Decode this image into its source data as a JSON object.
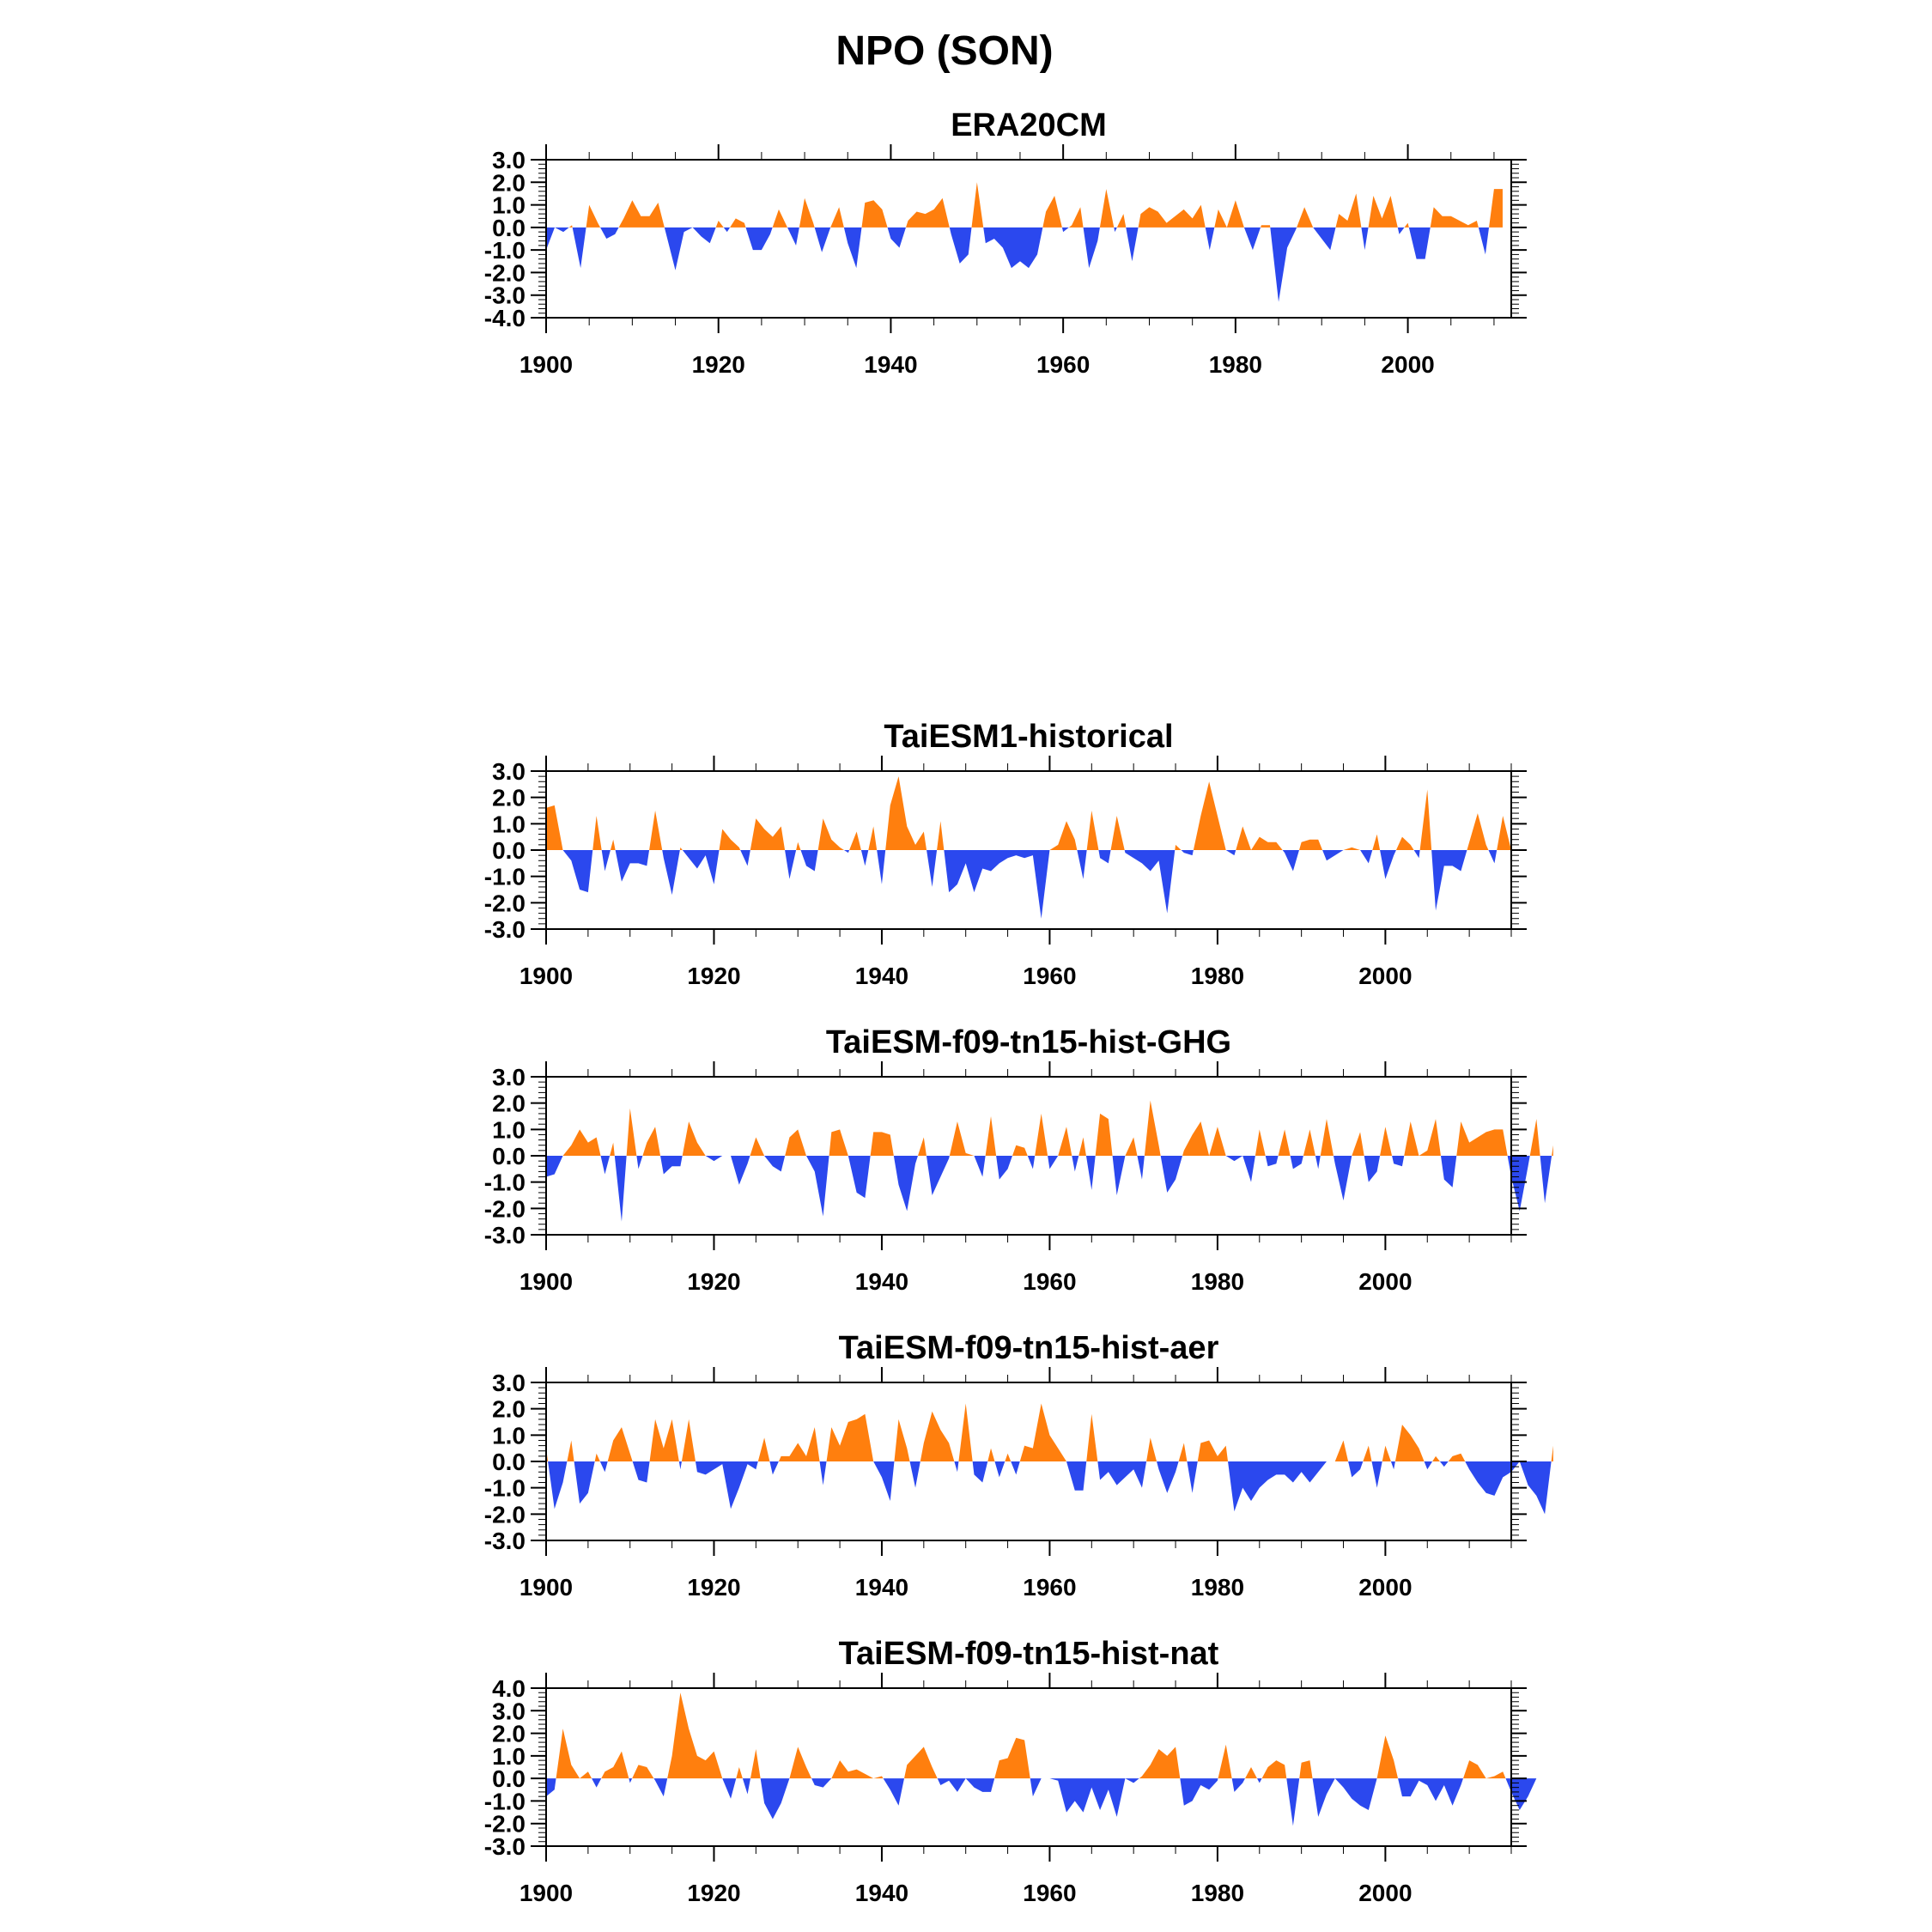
{
  "figure": {
    "title": "NPO (SON)"
  },
  "colors": {
    "positive": "#ff7f0e",
    "negative": "#2b48ee",
    "frame": "#000000",
    "background": "#ffffff"
  },
  "chart_data": [
    {
      "type": "area",
      "title": "ERA20CM",
      "xlabel": "",
      "ylabel": "",
      "xlim": [
        1900,
        2012
      ],
      "ylim": [
        -4,
        3
      ],
      "yticks": [
        3,
        2,
        1,
        0,
        -1,
        -2,
        -3,
        -4
      ],
      "ytick_labels": [
        "3.0",
        "2.0",
        "1.0",
        "0.0",
        "-1.0",
        "-2.0",
        "-3.0",
        "-4.0"
      ],
      "xticks": [
        1900,
        1920,
        1940,
        1960,
        1980,
        2000
      ],
      "x_start": 1900,
      "values": [
        -1.0,
        0.0,
        -0.2,
        0.1,
        -1.8,
        1.0,
        0.2,
        -0.5,
        -0.3,
        0.4,
        1.2,
        0.5,
        0.5,
        1.1,
        -0.4,
        -1.9,
        -0.2,
        0.0,
        -0.4,
        -0.7,
        0.3,
        -0.2,
        0.4,
        0.2,
        -1.0,
        -1.0,
        -0.3,
        0.8,
        0.0,
        -0.8,
        1.3,
        0.2,
        -1.1,
        0.0,
        0.9,
        -0.7,
        -1.8,
        1.1,
        1.2,
        0.8,
        -0.5,
        -0.9,
        0.3,
        0.7,
        0.6,
        0.8,
        1.3,
        -0.3,
        -1.6,
        -1.2,
        2.0,
        -0.7,
        -0.5,
        -0.9,
        -1.8,
        -1.5,
        -1.8,
        -1.2,
        0.7,
        1.4,
        -0.2,
        0.1,
        0.9,
        -1.8,
        -0.6,
        1.7,
        -0.2,
        0.6,
        -1.5,
        0.6,
        0.9,
        0.7,
        0.2,
        0.5,
        0.8,
        0.4,
        1.0,
        -1.0,
        0.8,
        0.0,
        1.2,
        0.0,
        -1.0,
        0.1,
        0.1,
        -3.3,
        -0.9,
        -0.1,
        0.9,
        0.0,
        -0.5,
        -1.0,
        0.6,
        0.3,
        1.5,
        -1.0,
        1.4,
        0.4,
        1.4,
        -0.3,
        0.2,
        -1.4,
        -1.4,
        0.9,
        0.5,
        0.5,
        0.3,
        0.1,
        0.3,
        -1.2,
        1.7,
        1.7
      ]
    },
    {
      "type": "area",
      "title": "TaiESM1-historical",
      "xlabel": "",
      "ylabel": "",
      "xlim": [
        1900,
        2015
      ],
      "ylim": [
        -3,
        3
      ],
      "yticks": [
        3,
        2,
        1,
        0,
        -1,
        -2,
        -3
      ],
      "ytick_labels": [
        "3.0",
        "2.0",
        "1.0",
        "0.0",
        "-1.0",
        "-2.0",
        "-3.0"
      ],
      "xticks": [
        1900,
        1920,
        1940,
        1960,
        1980,
        2000
      ],
      "x_start": 1900,
      "values": [
        1.6,
        1.7,
        0.0,
        -0.4,
        -1.5,
        -1.6,
        1.3,
        -0.8,
        0.4,
        -1.2,
        -0.5,
        -0.5,
        -0.6,
        1.5,
        -0.3,
        -1.7,
        0.1,
        -0.3,
        -0.7,
        -0.2,
        -1.3,
        0.8,
        0.4,
        0.1,
        -0.6,
        1.2,
        0.8,
        0.5,
        0.9,
        -1.1,
        0.3,
        -0.6,
        -0.8,
        1.2,
        0.4,
        0.1,
        -0.1,
        0.7,
        -0.6,
        0.9,
        -1.3,
        1.7,
        2.8,
        0.9,
        0.2,
        0.7,
        -1.4,
        1.1,
        -1.6,
        -1.3,
        -0.5,
        -1.6,
        -0.7,
        -0.8,
        -0.5,
        -0.3,
        -0.2,
        -0.3,
        -0.2,
        -2.6,
        0.0,
        0.2,
        1.1,
        0.4,
        -1.1,
        1.5,
        -0.3,
        -0.5,
        1.3,
        -0.1,
        -0.3,
        -0.5,
        -0.8,
        -0.4,
        -2.4,
        0.2,
        -0.1,
        -0.2,
        1.3,
        2.6,
        1.3,
        0.0,
        -0.2,
        0.9,
        0.0,
        0.5,
        0.3,
        0.3,
        -0.1,
        -0.8,
        0.3,
        0.4,
        0.4,
        -0.4,
        -0.2,
        0.0,
        0.1,
        0.0,
        -0.5,
        0.6,
        -1.1,
        -0.2,
        0.5,
        0.2,
        -0.3,
        2.3,
        -2.3,
        -0.6,
        -0.6,
        -0.8,
        0.3,
        1.4,
        0.2,
        -0.5,
        1.3,
        0.0
      ]
    },
    {
      "type": "area",
      "title": "TaiESM-f09-tn15-hist-GHG",
      "xlabel": "",
      "ylabel": "",
      "xlim": [
        1900,
        2015
      ],
      "ylim": [
        -3,
        3
      ],
      "yticks": [
        3,
        2,
        1,
        0,
        -1,
        -2,
        -3
      ],
      "ytick_labels": [
        "3.0",
        "2.0",
        "1.0",
        "0.0",
        "-1.0",
        "-2.0",
        "-3.0"
      ],
      "xticks": [
        1900,
        1920,
        1940,
        1960,
        1980,
        2000
      ],
      "x_start": 1900,
      "values": [
        -0.8,
        -0.7,
        0.0,
        0.4,
        1.0,
        0.5,
        0.7,
        -0.7,
        0.5,
        -2.5,
        1.8,
        -0.5,
        0.5,
        1.1,
        -0.7,
        -0.4,
        -0.4,
        1.3,
        0.5,
        0.0,
        -0.2,
        0.0,
        0.0,
        -1.1,
        -0.3,
        0.7,
        0.0,
        -0.4,
        -0.6,
        0.7,
        1.0,
        0.0,
        -0.6,
        -2.3,
        0.9,
        1.0,
        0.0,
        -1.4,
        -1.6,
        0.9,
        0.9,
        0.8,
        -1.1,
        -2.1,
        -0.3,
        0.7,
        -1.5,
        -0.8,
        -0.1,
        1.3,
        0.1,
        0.0,
        -0.8,
        1.5,
        -0.9,
        -0.5,
        0.4,
        0.3,
        -0.5,
        1.6,
        -0.5,
        0.0,
        1.1,
        -0.6,
        0.7,
        -1.3,
        1.6,
        1.4,
        -1.5,
        0.0,
        0.7,
        -0.9,
        2.1,
        0.4,
        -1.4,
        -0.9,
        0.2,
        0.8,
        1.3,
        0.0,
        1.1,
        0.0,
        -0.2,
        0.0,
        -1.0,
        1.0,
        -0.4,
        -0.3,
        1.0,
        -0.5,
        -0.3,
        1.0,
        -0.5,
        1.4,
        -0.3,
        -1.7,
        0.0,
        0.9,
        -1.0,
        -0.6,
        1.1,
        -0.3,
        -0.4,
        1.3,
        0.0,
        0.2,
        1.4,
        -0.9,
        -1.2,
        1.3,
        0.5,
        0.7,
        0.9,
        1.0,
        1.0,
        -0.8,
        -2.1,
        -0.4,
        1.4,
        -1.8,
        0.4
      ]
    },
    {
      "type": "area",
      "title": "TaiESM-f09-tn15-hist-aer",
      "xlabel": "",
      "ylabel": "",
      "xlim": [
        1900,
        2015
      ],
      "ylim": [
        -3,
        3
      ],
      "yticks": [
        3,
        2,
        1,
        0,
        -1,
        -2,
        -3
      ],
      "ytick_labels": [
        "3.0",
        "2.0",
        "1.0",
        "0.0",
        "-1.0",
        "-2.0",
        "-3.0"
      ],
      "xticks": [
        1900,
        1920,
        1940,
        1960,
        1980,
        2000
      ],
      "x_start": 1900,
      "values": [
        0.5,
        -1.8,
        -0.8,
        0.8,
        -1.6,
        -1.2,
        0.3,
        -0.4,
        0.8,
        1.3,
        0.3,
        -0.7,
        -0.8,
        1.6,
        0.5,
        1.6,
        -0.3,
        1.6,
        -0.4,
        -0.5,
        -0.3,
        -0.1,
        -1.8,
        -1.0,
        -0.1,
        -0.3,
        0.9,
        -0.5,
        0.2,
        0.2,
        0.7,
        0.2,
        1.3,
        -0.9,
        1.3,
        0.6,
        1.5,
        1.6,
        1.8,
        0.0,
        -0.6,
        -1.5,
        1.6,
        0.5,
        -1.0,
        0.7,
        1.9,
        1.2,
        0.7,
        -0.4,
        2.2,
        -0.5,
        -0.8,
        0.5,
        -0.6,
        0.3,
        -0.5,
        0.6,
        0.5,
        2.2,
        1.0,
        0.5,
        0.0,
        -1.1,
        -1.1,
        1.8,
        -0.7,
        -0.4,
        -0.9,
        -0.6,
        -0.3,
        -1.0,
        0.9,
        -0.3,
        -1.2,
        -0.4,
        0.7,
        -1.2,
        0.7,
        0.8,
        0.2,
        0.6,
        -1.9,
        -1.0,
        -1.5,
        -1.0,
        -0.7,
        -0.5,
        -0.5,
        -0.8,
        -0.4,
        -0.8,
        -0.4,
        0.0,
        0.0,
        0.8,
        -0.6,
        -0.3,
        0.6,
        -1.0,
        0.6,
        -0.3,
        1.4,
        1.0,
        0.5,
        -0.3,
        0.2,
        -0.2,
        0.2,
        0.3,
        -0.3,
        -0.8,
        -1.2,
        -1.3,
        -0.6,
        -0.4,
        0.0,
        -0.9,
        -1.3,
        -2.0,
        0.6
      ]
    },
    {
      "type": "area",
      "title": "TaiESM-f09-tn15-hist-nat",
      "xlabel": "",
      "ylabel": "",
      "xlim": [
        1900,
        2015
      ],
      "ylim": [
        -3,
        4
      ],
      "yticks": [
        4,
        3,
        2,
        1,
        0,
        -1,
        -2,
        -3
      ],
      "ytick_labels": [
        "4.0",
        "3.0",
        "2.0",
        "1.0",
        "0.0",
        "-1.0",
        "-2.0",
        "-3.0"
      ],
      "xticks": [
        1900,
        1920,
        1940,
        1960,
        1980,
        2000
      ],
      "x_start": 1900,
      "values": [
        -0.8,
        -0.5,
        2.2,
        0.6,
        0.0,
        0.3,
        -0.4,
        0.3,
        0.5,
        1.2,
        -0.2,
        0.6,
        0.5,
        -0.1,
        -0.8,
        1.0,
        3.8,
        2.2,
        1.0,
        0.8,
        1.2,
        0.0,
        -0.9,
        0.5,
        -0.7,
        1.3,
        -1.1,
        -1.8,
        -1.1,
        0.0,
        1.4,
        0.5,
        -0.3,
        -0.4,
        0.0,
        0.8,
        0.3,
        0.4,
        0.2,
        0.0,
        0.1,
        -0.5,
        -1.2,
        0.6,
        1.0,
        1.4,
        0.5,
        -0.3,
        -0.1,
        -0.6,
        0.0,
        -0.4,
        -0.6,
        -0.6,
        0.8,
        0.9,
        1.8,
        1.7,
        -0.8,
        0.0,
        0.0,
        -0.1,
        -1.5,
        -1.0,
        -1.5,
        -0.4,
        -1.4,
        -0.5,
        -1.7,
        0.0,
        -0.2,
        0.1,
        0.6,
        1.3,
        1.0,
        1.4,
        -1.2,
        -1.0,
        -0.3,
        -0.5,
        -0.1,
        1.5,
        -0.6,
        -0.2,
        0.5,
        -0.2,
        0.5,
        0.8,
        0.6,
        -2.1,
        0.7,
        0.8,
        -1.7,
        -0.7,
        0.0,
        -0.4,
        -0.9,
        -1.2,
        -1.4,
        0.0,
        1.9,
        0.8,
        -0.8,
        -0.8,
        -0.1,
        -0.3,
        -1.0,
        -0.3,
        -1.2,
        -0.3,
        0.8,
        0.6,
        0.0,
        0.1,
        0.3,
        -0.6,
        -1.4,
        -0.8,
        0.0
      ]
    }
  ]
}
